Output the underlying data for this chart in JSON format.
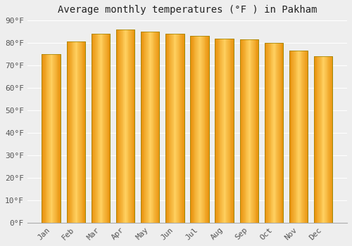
{
  "title": "Average monthly temperatures (°F ) in Pakham",
  "months": [
    "Jan",
    "Feb",
    "Mar",
    "Apr",
    "May",
    "Jun",
    "Jul",
    "Aug",
    "Sep",
    "Oct",
    "Nov",
    "Dec"
  ],
  "values": [
    75,
    80.5,
    84,
    86,
    85,
    84,
    83,
    82,
    81.5,
    80,
    76.5,
    74
  ],
  "bar_color_main": "#FFA500",
  "bar_color_light": "#FFD060",
  "bar_color_dark": "#E8900A",
  "bar_color_edge": "#888800",
  "ylim": [
    0,
    90
  ],
  "yticks": [
    0,
    10,
    20,
    30,
    40,
    50,
    60,
    70,
    80,
    90
  ],
  "ytick_labels": [
    "0°F",
    "10°F",
    "20°F",
    "30°F",
    "40°F",
    "50°F",
    "60°F",
    "70°F",
    "80°F",
    "90°F"
  ],
  "background_color": "#eeeeee",
  "grid_color": "#ffffff",
  "title_fontsize": 10,
  "tick_fontsize": 8,
  "bar_width": 0.75,
  "figsize": [
    5.0,
    3.5
  ],
  "dpi": 100
}
